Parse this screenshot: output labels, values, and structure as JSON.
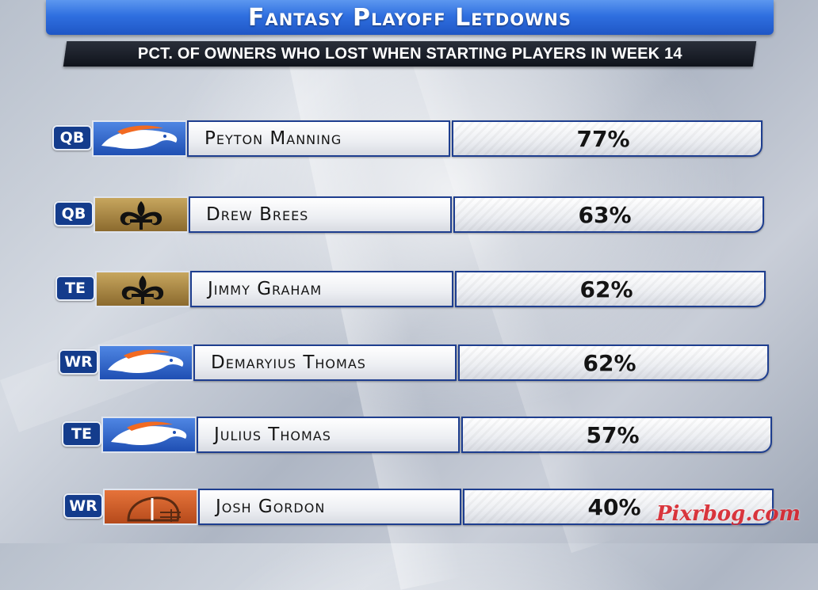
{
  "header": {
    "title": "Fantasy Playoff Letdowns",
    "subtitle": "PCT. OF OWNERS WHO LOST WHEN STARTING PLAYERS IN WEEK 14"
  },
  "rows": [
    {
      "position": "QB",
      "team": "broncos",
      "player": "Peyton Manning",
      "pct": "77%"
    },
    {
      "position": "QB",
      "team": "saints",
      "player": "Drew Brees",
      "pct": "63%"
    },
    {
      "position": "TE",
      "team": "saints",
      "player": "Jimmy Graham",
      "pct": "62%"
    },
    {
      "position": "WR",
      "team": "broncos",
      "player": "Demaryius Thomas",
      "pct": "62%"
    },
    {
      "position": "TE",
      "team": "broncos",
      "player": "Julius Thomas",
      "pct": "57%"
    },
    {
      "position": "WR",
      "team": "browns",
      "player": "Josh Gordon",
      "pct": "40%"
    }
  ],
  "watermark": "Pixrbog.com",
  "colors": {
    "title_bar": "#2f6fe0",
    "subtitle_bar": "#121722",
    "badge": "#143c8c",
    "box_border": "#1e3e8f",
    "watermark": "#d8222a"
  }
}
